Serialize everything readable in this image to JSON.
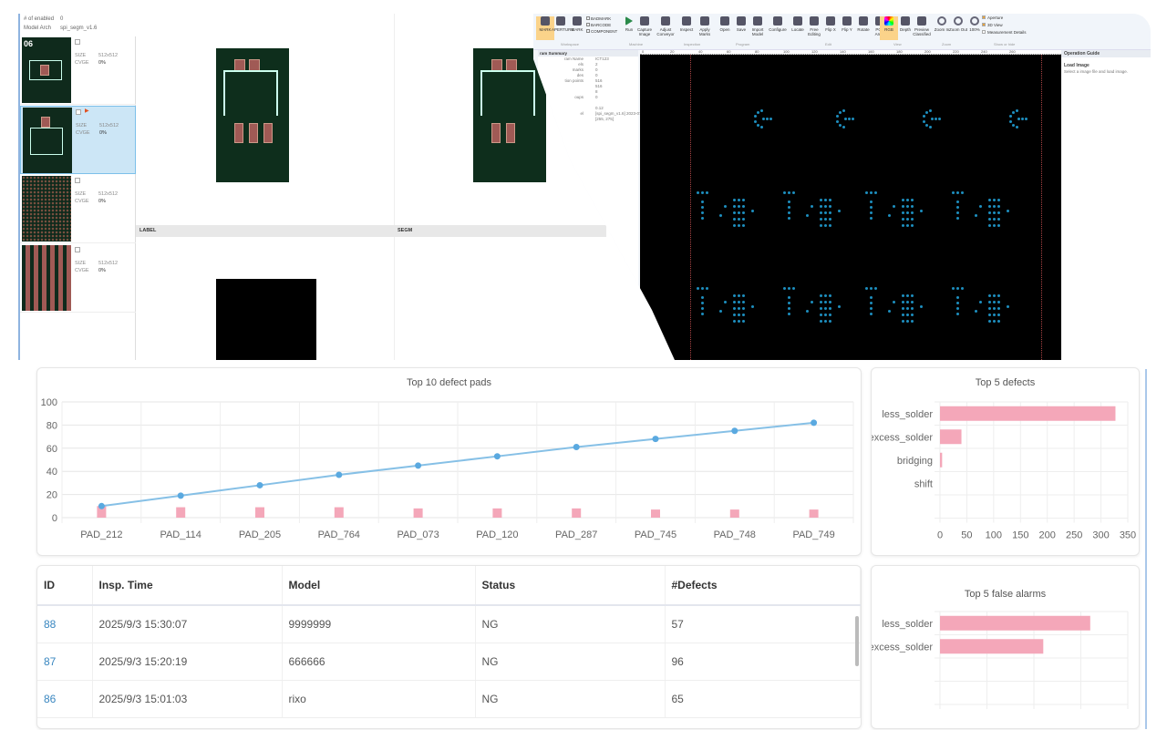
{
  "left_app": {
    "info": [
      {
        "label": "# of enabled",
        "value": "0"
      },
      {
        "label": "Model Arch",
        "value": "spi_segm_v1.6"
      }
    ],
    "items": [
      {
        "size_label": "SIZE",
        "size": "512x512",
        "cvge_label": "CVGE",
        "cvge": "0%",
        "selected": false,
        "overlay": "06"
      },
      {
        "size_label": "SIZE",
        "size": "512x512",
        "cvge_label": "CVGE",
        "cvge": "0%",
        "selected": true
      },
      {
        "size_label": "SIZE",
        "size": "512x512",
        "cvge_label": "CVGE",
        "cvge": "0%",
        "selected": false
      },
      {
        "size_label": "SIZE",
        "size": "512x512",
        "cvge_label": "CVGE",
        "cvge": "0%",
        "selected": false
      }
    ],
    "pane_labels": [
      "LABEL",
      "SEGM"
    ]
  },
  "right_app": {
    "ribbon": [
      {
        "label": "MARK",
        "group": "Workspace",
        "active": true
      },
      {
        "label": "APERTURE"
      },
      {
        "label": "MARK"
      },
      {
        "label": "Run",
        "group": "Machine"
      },
      {
        "label": "Capture Image"
      },
      {
        "label": "Adjust Conveyor"
      },
      {
        "label": "Inspect",
        "group": "Inspection"
      },
      {
        "label": "Apply Marks"
      },
      {
        "label": "Open",
        "group": "Program"
      },
      {
        "label": "Save"
      },
      {
        "label": "Import Model"
      },
      {
        "label": "Configure"
      },
      {
        "label": "Locate",
        "group": "Edit"
      },
      {
        "label": "Free Editing"
      },
      {
        "label": "Flip X"
      },
      {
        "label": "Flip Y"
      },
      {
        "label": "Rotate"
      },
      {
        "label": "PCB Array"
      },
      {
        "label": "RGB",
        "group": "View",
        "active": true
      },
      {
        "label": "Depth"
      },
      {
        "label": "Preview Classified"
      },
      {
        "label": "Zoom In",
        "group": "Zoom"
      },
      {
        "label": "Zoom Out"
      },
      {
        "label": "100%"
      }
    ],
    "workspace_checks": [
      "BADMARK",
      "BARCODE",
      "COMPONENT"
    ],
    "group_labels": [
      "Workspace",
      "Machine",
      "Inspection",
      "Program",
      "Edit",
      "View",
      "Zoom",
      "Show or hide"
    ],
    "show_hide": [
      {
        "label": "Aperture",
        "checked": true
      },
      {
        "label": "3D View",
        "checked": true
      },
      {
        "label": "Measurement Details",
        "checked": false
      }
    ],
    "summary_title": "ram Summary",
    "summary": [
      {
        "k": "ram Name",
        "v": "ICT123"
      },
      {
        "k": "els",
        "v": "2"
      },
      {
        "k": "marks",
        "v": "0"
      },
      {
        "k": "des",
        "v": "0"
      },
      {
        "k": "tion points",
        "v": "516"
      },
      {
        "k": "",
        "v": "516"
      },
      {
        "k": "",
        "v": "8"
      },
      {
        "k": "oups",
        "v": "0"
      },
      {
        "k": "",
        "v": "0.12"
      },
      {
        "k": "el",
        "v": "[spi_segm_v1.6] 2023-07-26 2"
      },
      {
        "k": "",
        "v": "[255, 275]"
      }
    ],
    "ruler_ticks": [
      "0",
      "20",
      "40",
      "60",
      "80",
      "100",
      "120",
      "140",
      "160",
      "180",
      "200",
      "220",
      "240",
      "260"
    ],
    "guide_title": "Operation Guide",
    "guide_step": "Load Image",
    "guide_text": "Select a image file and load image."
  },
  "chart_data": [
    {
      "type": "bar+line",
      "title": "Top 10 defect pads",
      "categories": [
        "PAD_212",
        "PAD_114",
        "PAD_205",
        "PAD_764",
        "PAD_073",
        "PAD_120",
        "PAD_287",
        "PAD_745",
        "PAD_748",
        "PAD_749"
      ],
      "series": [
        {
          "type": "bar",
          "values": [
            10,
            9,
            9,
            9,
            8,
            8,
            8,
            7,
            7,
            7
          ],
          "color": "#f4a7b9"
        },
        {
          "type": "line",
          "values": [
            10,
            19,
            28,
            37,
            45,
            53,
            61,
            68,
            75,
            82
          ],
          "color": "#5aa9e0"
        }
      ],
      "ylim": [
        0,
        100
      ],
      "yticks": [
        "0",
        "20",
        "40",
        "60",
        "80",
        "100"
      ],
      "grid": true
    },
    {
      "type": "hbar",
      "title": "Top 5 defects",
      "categories": [
        "less_solder",
        "excess_solder",
        "bridging",
        "shift",
        ""
      ],
      "values": [
        327,
        40,
        4,
        0,
        0
      ],
      "xlim": [
        0,
        350
      ],
      "xticks": [
        "0",
        "50",
        "100",
        "150",
        "200",
        "250",
        "300",
        "350"
      ],
      "color": "#f4a7b9",
      "grid": true
    },
    {
      "type": "hbar",
      "title": "Top 5 false alarms",
      "categories": [
        "less_solder",
        "excess_solder",
        "",
        ""
      ],
      "values": [
        3.2,
        2.2,
        0,
        0
      ],
      "xlim": [
        0,
        4
      ],
      "color": "#f4a7b9",
      "grid": true
    }
  ],
  "table": {
    "headers": [
      "ID",
      "Insp. Time",
      "Model",
      "Status",
      "#Defects"
    ],
    "rows": [
      [
        "88",
        "2025/9/3 15:30:07",
        "9999999",
        "NG",
        "57"
      ],
      [
        "87",
        "2025/9/3 15:20:19",
        "666666",
        "NG",
        "96"
      ],
      [
        "86",
        "2025/9/3 15:01:03",
        "rixo",
        "NG",
        "65"
      ]
    ]
  }
}
